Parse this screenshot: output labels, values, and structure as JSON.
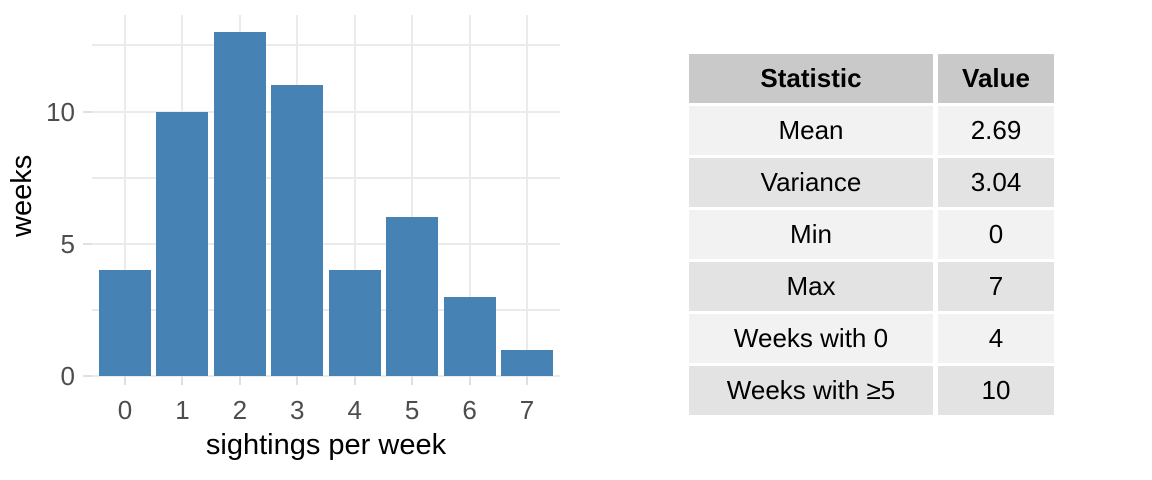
{
  "chart_data": {
    "type": "bar",
    "title": "",
    "categories": [
      "0",
      "1",
      "2",
      "3",
      "4",
      "5",
      "6",
      "7"
    ],
    "values": [
      4,
      10,
      13,
      11,
      4,
      6,
      3,
      1
    ],
    "xlabel": "sightings per week",
    "ylabel": "weeks",
    "ylim": [
      0,
      13.65
    ],
    "y_major_ticks": [
      0,
      5,
      10
    ],
    "y_minor_gridlines": [
      2.5,
      7.5,
      12.5
    ],
    "grid": "on",
    "legend": "none",
    "bar_color": "#4682B4",
    "gridline_color": "#ebebeb",
    "tick_color": "#e0e0e0",
    "tick_label_color": "#4d4d4d",
    "axis_title_color": "#000000",
    "background_color": "#ffffff"
  },
  "table": {
    "headers": [
      "Statistic",
      "Value"
    ],
    "rows": [
      {
        "statistic": "Mean",
        "value": "2.69"
      },
      {
        "statistic": "Variance",
        "value": "3.04"
      },
      {
        "statistic": "Min",
        "value": "0"
      },
      {
        "statistic": "Max",
        "value": "7"
      },
      {
        "statistic": "Weeks with 0",
        "value": "4"
      },
      {
        "statistic": "Weeks with ≥5",
        "value": "10"
      }
    ],
    "header_bg": "#c9c9c9",
    "row_bg_odd": "#f2f2f2",
    "row_bg_even": "#e3e3e3"
  }
}
